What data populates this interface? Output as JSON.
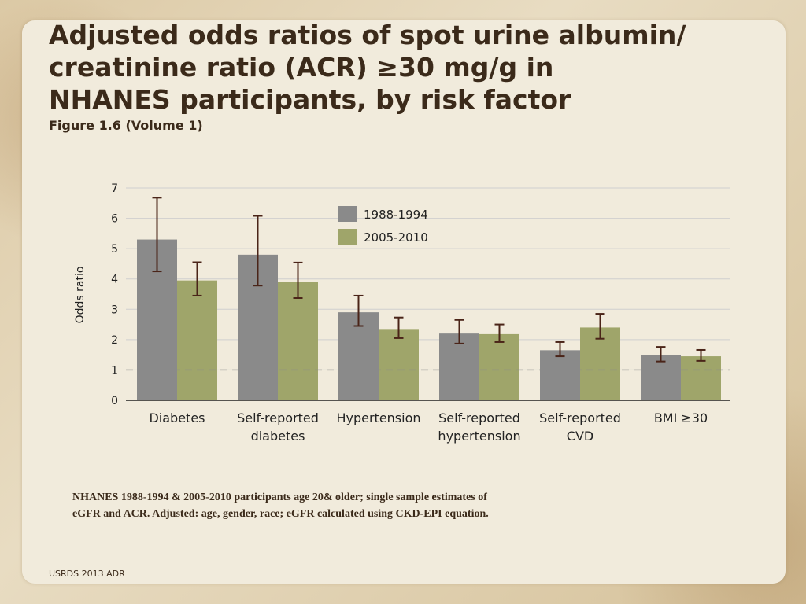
{
  "title": "Adjusted odds ratios of spot urine albumin/\ncreatinine ratio (ACR) ≥30 mg/g in\nNHANES participants, by risk factor",
  "subtitle": "Figure 1.6 (Volume 1)",
  "note": "NHANES 1988-1994 & 2005-2010 participants age 20& older; single sample estimates of\neGFR and ACR. Adjusted: age, gender, race; eGFR calculated using CKD-EPI equation.",
  "footer": "USRDS 2013 ADR",
  "colors": {
    "series1": "#8a8a8a",
    "series2": "#9fa56a",
    "errorbar": "#4a2418",
    "reference": "#8a8a8a"
  },
  "chart_data": {
    "type": "bar",
    "title": "",
    "xlabel": "",
    "ylabel": "Odds ratio",
    "ylim": [
      0,
      7
    ],
    "yticks": [
      0,
      1,
      2,
      3,
      4,
      5,
      6,
      7
    ],
    "grid": true,
    "reference_line": 1,
    "legend_position": "top-center",
    "categories": [
      [
        "Diabetes"
      ],
      [
        "Self-reported",
        "diabetes"
      ],
      [
        "Hypertension"
      ],
      [
        "Self-reported",
        "hypertension"
      ],
      [
        "Self-reported",
        "CVD"
      ],
      [
        "BMI ≥30"
      ]
    ],
    "series": [
      {
        "name": "1988-1994",
        "values": [
          5.3,
          4.8,
          2.9,
          2.2,
          1.65,
          1.5
        ],
        "ci_low": [
          4.25,
          3.78,
          2.45,
          1.87,
          1.45,
          1.28
        ],
        "ci_high": [
          6.68,
          6.08,
          3.45,
          2.65,
          1.92,
          1.76
        ]
      },
      {
        "name": "2005-2010",
        "values": [
          3.95,
          3.9,
          2.35,
          2.18,
          2.4,
          1.45
        ],
        "ci_low": [
          3.45,
          3.37,
          2.05,
          1.92,
          2.03,
          1.3
        ],
        "ci_high": [
          4.55,
          4.54,
          2.73,
          2.5,
          2.85,
          1.66
        ]
      }
    ]
  }
}
